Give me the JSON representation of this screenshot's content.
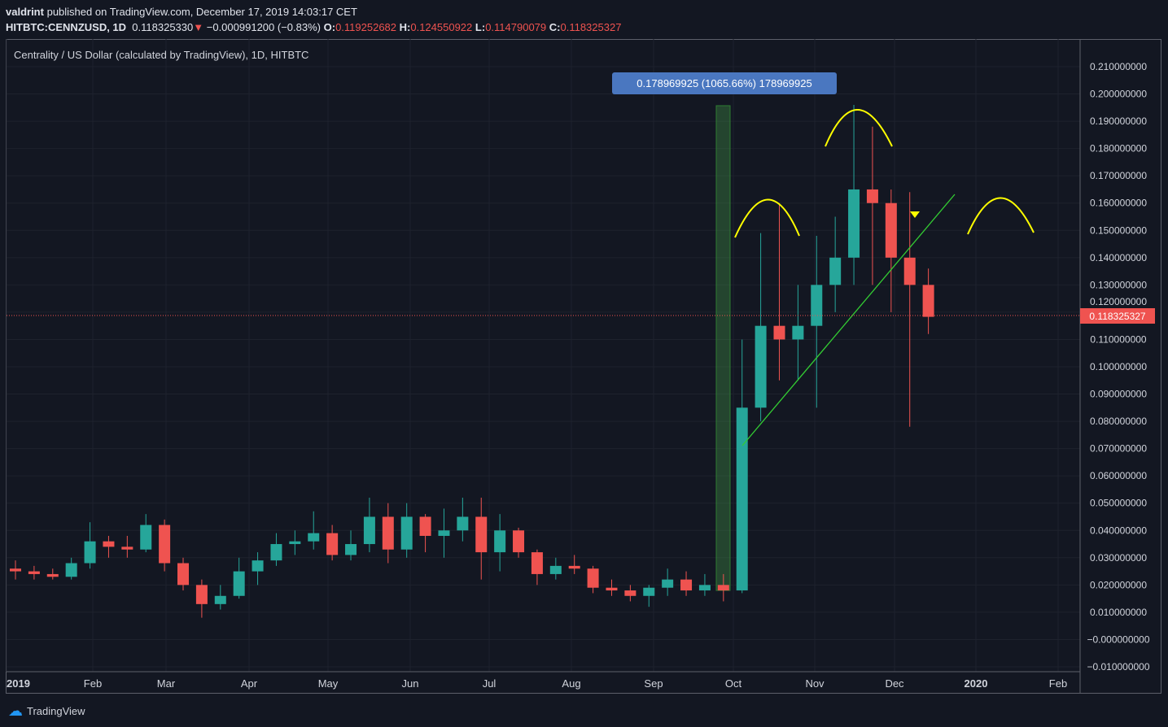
{
  "header": {
    "author": "valdrint",
    "published": "published on TradingView.com, December 17, 2019 14:03:17 CET",
    "symbol": "HITBTC:CENNZUSD, 1D",
    "last": "0.118325330",
    "change": "−0.000991200 (−0.83%)",
    "o_label": "O:",
    "o": "0.119252682",
    "h_label": "H:",
    "h": "0.124550922",
    "l_label": "L:",
    "l": "0.114790079",
    "c_label": "C:",
    "c": "0.118325327"
  },
  "footer": {
    "brand": "TradingView"
  },
  "colors": {
    "up": "#26a69a",
    "down": "#ef5350",
    "background": "#131722",
    "annotation": "#ffff00",
    "trendline": "#33cc33"
  },
  "chart_data": {
    "type": "candlestick",
    "title": "Centrality / US Dollar (calculated by TradingView), 1D, HITBTC",
    "interval": "weekly approximation of daily candles",
    "ylim": [
      -0.01,
      0.21
    ],
    "y_ticks": [
      "0.210000000",
      "0.200000000",
      "0.190000000",
      "0.180000000",
      "0.170000000",
      "0.160000000",
      "0.150000000",
      "0.140000000",
      "0.130000000",
      "0.120000000",
      "0.110000000",
      "0.100000000",
      "0.090000000",
      "0.080000000",
      "0.070000000",
      "0.060000000",
      "0.050000000",
      "0.040000000",
      "0.030000000",
      "0.020000000",
      "0.010000000",
      "−0.000000000",
      "−0.010000000"
    ],
    "x_ticks": [
      "2019",
      "Feb",
      "Mar",
      "Apr",
      "May",
      "Jun",
      "Jul",
      "Aug",
      "Sep",
      "Oct",
      "Nov",
      "Dec",
      "2020",
      "Feb"
    ],
    "last_price_label": "0.118325327",
    "measure_label": "0.178969925 (1065.66%) 178969925",
    "ohlc": [
      [
        "2019-01-01",
        0.026,
        0.029,
        0.022,
        0.025
      ],
      [
        "2019-01-08",
        0.025,
        0.027,
        0.022,
        0.024
      ],
      [
        "2019-01-15",
        0.024,
        0.026,
        0.022,
        0.023
      ],
      [
        "2019-01-22",
        0.023,
        0.03,
        0.022,
        0.028
      ],
      [
        "2019-01-29",
        0.028,
        0.043,
        0.026,
        0.036
      ],
      [
        "2019-02-05",
        0.036,
        0.038,
        0.03,
        0.034
      ],
      [
        "2019-02-12",
        0.034,
        0.038,
        0.03,
        0.033
      ],
      [
        "2019-02-19",
        0.033,
        0.046,
        0.032,
        0.042
      ],
      [
        "2019-02-26",
        0.042,
        0.044,
        0.025,
        0.028
      ],
      [
        "2019-03-05",
        0.028,
        0.03,
        0.018,
        0.02
      ],
      [
        "2019-03-12",
        0.02,
        0.022,
        0.008,
        0.013
      ],
      [
        "2019-03-19",
        0.013,
        0.02,
        0.011,
        0.016
      ],
      [
        "2019-03-26",
        0.016,
        0.03,
        0.015,
        0.025
      ],
      [
        "2019-04-02",
        0.025,
        0.032,
        0.02,
        0.029
      ],
      [
        "2019-04-09",
        0.029,
        0.039,
        0.027,
        0.035
      ],
      [
        "2019-04-16",
        0.035,
        0.04,
        0.031,
        0.036
      ],
      [
        "2019-04-23",
        0.036,
        0.047,
        0.033,
        0.039
      ],
      [
        "2019-04-30",
        0.039,
        0.042,
        0.029,
        0.031
      ],
      [
        "2019-05-07",
        0.031,
        0.04,
        0.029,
        0.035
      ],
      [
        "2019-05-14",
        0.035,
        0.052,
        0.032,
        0.045
      ],
      [
        "2019-05-21",
        0.045,
        0.05,
        0.028,
        0.033
      ],
      [
        "2019-05-28",
        0.033,
        0.05,
        0.03,
        0.045
      ],
      [
        "2019-06-04",
        0.045,
        0.046,
        0.032,
        0.038
      ],
      [
        "2019-06-11",
        0.038,
        0.048,
        0.03,
        0.04
      ],
      [
        "2019-06-18",
        0.04,
        0.052,
        0.036,
        0.045
      ],
      [
        "2019-06-25",
        0.045,
        0.052,
        0.022,
        0.032
      ],
      [
        "2019-07-02",
        0.032,
        0.046,
        0.025,
        0.04
      ],
      [
        "2019-07-09",
        0.04,
        0.041,
        0.03,
        0.032
      ],
      [
        "2019-07-16",
        0.032,
        0.033,
        0.02,
        0.024
      ],
      [
        "2019-07-23",
        0.024,
        0.03,
        0.022,
        0.027
      ],
      [
        "2019-07-30",
        0.027,
        0.031,
        0.024,
        0.026
      ],
      [
        "2019-08-06",
        0.026,
        0.027,
        0.017,
        0.019
      ],
      [
        "2019-08-13",
        0.019,
        0.022,
        0.016,
        0.018
      ],
      [
        "2019-08-20",
        0.018,
        0.02,
        0.014,
        0.016
      ],
      [
        "2019-08-27",
        0.016,
        0.02,
        0.012,
        0.019
      ],
      [
        "2019-09-03",
        0.019,
        0.026,
        0.016,
        0.022
      ],
      [
        "2019-09-10",
        0.022,
        0.025,
        0.016,
        0.018
      ],
      [
        "2019-09-17",
        0.018,
        0.024,
        0.016,
        0.02
      ],
      [
        "2019-09-24",
        0.02,
        0.024,
        0.014,
        0.018
      ],
      [
        "2019-10-01",
        0.018,
        0.11,
        0.017,
        0.085
      ],
      [
        "2019-10-08",
        0.085,
        0.149,
        0.08,
        0.115
      ],
      [
        "2019-10-15",
        0.115,
        0.16,
        0.095,
        0.11
      ],
      [
        "2019-10-22",
        0.11,
        0.13,
        0.095,
        0.115
      ],
      [
        "2019-10-29",
        0.115,
        0.148,
        0.085,
        0.13
      ],
      [
        "2019-11-05",
        0.13,
        0.155,
        0.12,
        0.14
      ],
      [
        "2019-11-12",
        0.14,
        0.196,
        0.13,
        0.165
      ],
      [
        "2019-11-19",
        0.165,
        0.188,
        0.13,
        0.16
      ],
      [
        "2019-11-26",
        0.16,
        0.165,
        0.12,
        0.14
      ],
      [
        "2019-12-03",
        0.14,
        0.164,
        0.078,
        0.13
      ],
      [
        "2019-12-10",
        0.13,
        0.136,
        0.112,
        0.1183
      ]
    ]
  }
}
